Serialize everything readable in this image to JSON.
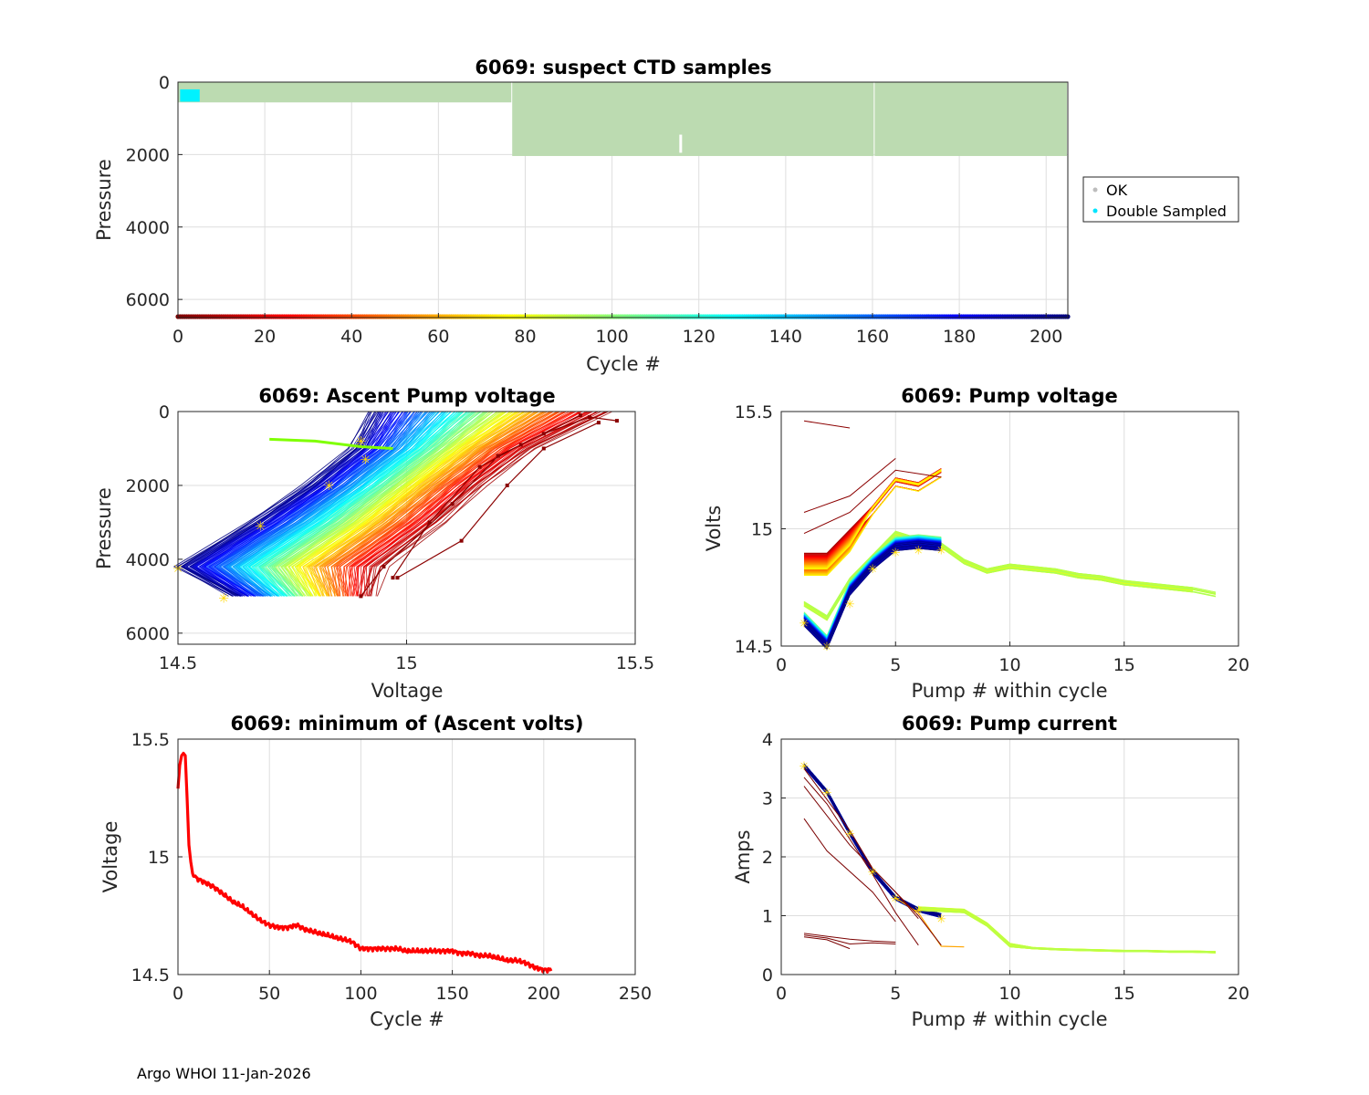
{
  "footer": "Argo WHOI 11-Jan-2026",
  "chart_data": [
    {
      "id": "ctd",
      "type": "scatter",
      "title": "6069: suspect CTD samples",
      "xlabel": "Cycle #",
      "ylabel": "Pressure",
      "xlim": [
        0,
        205
      ],
      "ylim": [
        6500,
        0
      ],
      "xticks": [
        0,
        20,
        40,
        60,
        80,
        100,
        120,
        140,
        160,
        180,
        200
      ],
      "yticks": [
        0,
        2000,
        4000,
        6000
      ],
      "legend": {
        "placement": "outside-right",
        "entries": [
          {
            "label": "OK",
            "color": "#bdbdbd"
          },
          {
            "label": "Double Sampled",
            "color": "#00e5ff"
          }
        ]
      },
      "ok_fill_color": "#bcdbb1",
      "ok_segments": [
        {
          "x0": 0,
          "x1": 77,
          "pmax": 560
        },
        {
          "x0": 77,
          "x1": 160.5,
          "pmax": 2040
        },
        {
          "x0": 160.5,
          "x1": 205,
          "pmax": 2040
        }
      ],
      "double_sampled": {
        "x0": 0.5,
        "x1": 5,
        "p0": 200,
        "p1": 540
      },
      "colorbar_cycles": [
        0,
        205
      ]
    },
    {
      "id": "ascent",
      "type": "line",
      "title": "6069: Ascent Pump voltage",
      "xlabel": "Voltage",
      "ylabel": "Pressure",
      "xlim": [
        14.5,
        15.5
      ],
      "ylim": [
        6300,
        0
      ],
      "xticks": [
        14.5,
        15,
        15.5
      ],
      "yticks": [
        0,
        2000,
        4000,
        6000
      ],
      "series_note": "one line per cycle 1-205, colored by cycle (dark red early to dark blue late)",
      "depth_levels": [
        0,
        1000,
        2000,
        3000,
        4200,
        5000
      ],
      "volts_early": [
        15.45,
        15.28,
        15.17,
        15.08,
        14.95,
        14.93
      ],
      "volts_late": [
        14.92,
        14.88,
        14.78,
        14.66,
        14.5,
        14.62
      ]
    },
    {
      "id": "pumpv",
      "type": "line",
      "title": "6069: Pump voltage",
      "xlabel": "Pump # within cycle",
      "ylabel": "Volts",
      "xlim": [
        0,
        20
      ],
      "ylim": [
        14.5,
        15.5
      ],
      "xticks": [
        0,
        5,
        10,
        15,
        20
      ],
      "yticks": [
        14.5,
        15,
        15.5
      ],
      "series_note": "one line per cycle, colored by cycle",
      "early_pumps": [
        1,
        2,
        3,
        4,
        5,
        6,
        7
      ],
      "early_volts": [
        14.88,
        14.88,
        14.98,
        15.08,
        15.2,
        15.18,
        15.24
      ],
      "long_pumps": [
        1,
        2,
        3,
        4,
        5,
        6,
        7,
        8,
        9,
        10,
        11,
        12,
        13,
        14,
        15,
        16,
        17,
        18,
        19
      ],
      "long_volts": [
        14.68,
        14.62,
        14.78,
        14.88,
        14.98,
        14.95,
        14.93,
        14.86,
        14.82,
        14.84,
        14.83,
        14.82,
        14.8,
        14.79,
        14.77,
        14.76,
        14.75,
        14.74,
        14.72
      ],
      "late_pumps": [
        1,
        2,
        3,
        4,
        5,
        6,
        7
      ],
      "late_volts": [
        14.6,
        14.5,
        14.73,
        14.84,
        14.92,
        14.93,
        14.92
      ]
    },
    {
      "id": "minv",
      "type": "line",
      "title": "6069: minimum of (Ascent volts)",
      "xlabel": "Cycle #",
      "ylabel": "Voltage",
      "xlim": [
        0,
        250
      ],
      "ylim": [
        14.5,
        15.5
      ],
      "xticks": [
        0,
        50,
        100,
        150,
        200,
        250
      ],
      "yticks": [
        14.5,
        15,
        15.5
      ],
      "color": "#ff0000",
      "x": [
        0,
        1,
        2,
        3,
        4,
        5,
        6,
        7,
        8,
        10,
        15,
        20,
        25,
        30,
        35,
        40,
        45,
        50,
        55,
        60,
        65,
        70,
        75,
        80,
        85,
        90,
        95,
        100,
        105,
        110,
        115,
        120,
        125,
        130,
        135,
        140,
        145,
        150,
        155,
        160,
        165,
        170,
        175,
        180,
        185,
        190,
        195,
        200,
        204
      ],
      "y": [
        15.29,
        15.39,
        15.43,
        15.44,
        15.43,
        15.25,
        15.05,
        14.98,
        14.93,
        14.91,
        14.89,
        14.87,
        14.84,
        14.81,
        14.79,
        14.76,
        14.73,
        14.71,
        14.7,
        14.7,
        14.71,
        14.69,
        14.68,
        14.67,
        14.66,
        14.65,
        14.64,
        14.61,
        14.61,
        14.61,
        14.61,
        14.61,
        14.6,
        14.6,
        14.6,
        14.6,
        14.6,
        14.6,
        14.59,
        14.59,
        14.58,
        14.58,
        14.57,
        14.56,
        14.56,
        14.55,
        14.53,
        14.52,
        14.52
      ]
    },
    {
      "id": "pumpc",
      "type": "line",
      "title": "6069: Pump current",
      "xlabel": "Pump # within cycle",
      "ylabel": "Amps",
      "xlim": [
        0,
        20
      ],
      "ylim": [
        0,
        4
      ],
      "xticks": [
        0,
        5,
        10,
        15,
        20
      ],
      "yticks": [
        0,
        1,
        2,
        3,
        4
      ],
      "series_note": "one line per cycle, colored by cycle",
      "main_pumps": [
        1,
        2,
        3,
        4,
        5,
        6,
        7
      ],
      "main_amps": [
        3.55,
        3.1,
        2.4,
        1.75,
        1.3,
        1.1,
        1.0
      ],
      "long_pumps": [
        6,
        7,
        8,
        9,
        10,
        11,
        12,
        13,
        14,
        15,
        16,
        17,
        18,
        19
      ],
      "long_amps": [
        1.12,
        1.1,
        1.08,
        0.85,
        0.5,
        0.45,
        0.43,
        0.42,
        0.41,
        0.4,
        0.4,
        0.39,
        0.39,
        0.38
      ],
      "low_pumps": [
        1,
        2,
        3,
        4,
        5
      ],
      "low_amps": [
        0.7,
        0.65,
        0.6,
        0.57,
        0.55
      ]
    }
  ]
}
